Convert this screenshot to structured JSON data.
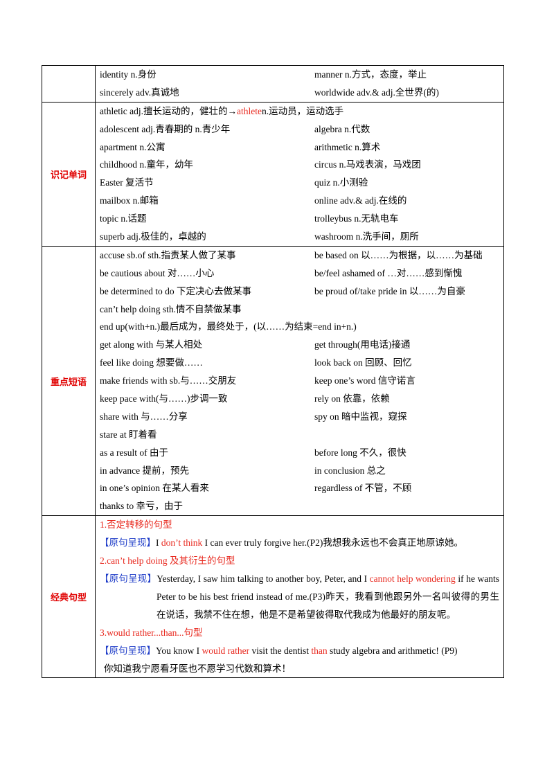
{
  "table": {
    "intro": [
      [
        "identity n.身份",
        "manner n.方式，态度，举止"
      ],
      [
        "sincerely adv.真诚地",
        "worldwide adv.& adj.全世界(的)"
      ]
    ],
    "words": {
      "label": "识记单词",
      "first": [
        "athletic adj.擅长运动的，健壮的→",
        "athlete",
        " n.运动员，运动选手"
      ],
      "pairs": [
        [
          "adolescent adj.青春期的  n.青少年",
          "algebra n.代数"
        ],
        [
          "apartment n.公寓",
          "arithmetic  n.算术"
        ],
        [
          "childhood n.童年，幼年",
          "circus n.马戏表演，马戏团"
        ],
        [
          "Easter  复活节",
          "quiz n.小测验"
        ],
        [
          "mailbox n.邮箱",
          "online adv.& adj.在线的"
        ],
        [
          "topic n.话题",
          "trolleybus n.无轨电车"
        ],
        [
          "superb adj.极佳的，卓越的",
          "washroom n.洗手间，厕所"
        ]
      ]
    },
    "phrases": {
      "label": "重点短语",
      "lines": [
        [
          "accuse sb.of sth.指责某人做了某事",
          "be based on 以……为根据，以……为基础"
        ],
        [
          "be cautious about 对……小心",
          "be/feel ashamed of …对……感到惭愧"
        ],
        [
          "be determined to do 下定决心去做某事",
          "be proud of/take pride in 以……为自豪"
        ],
        [
          "can’t help doing sth.情不自禁做某事"
        ],
        [
          "end up(with+n.)最后成为，最终处于，(以……为结束=end  in+n.)"
        ],
        [
          "get along with 与某人相处",
          "get through(用电话)接通"
        ],
        [
          "feel like doing 想要做……",
          "look back on 回顾、回忆"
        ],
        [
          "make friends with sb.与……交朋友",
          "keep one’s word 信守诺言"
        ],
        [
          "keep pace with(与……)步调一致",
          "rely on 依靠，依赖"
        ],
        [
          "share with 与……分享",
          "spy on 暗中监视，窥探"
        ],
        [
          "stare at 盯着看"
        ],
        [
          "as a result of 由于",
          "before long 不久，很快"
        ],
        [
          "in advance 提前，预先",
          "in conclusion 总之"
        ],
        [
          "in one’s opinion 在某人看来",
          " regardless of 不管，不顾"
        ],
        [
          "thanks to 幸亏，由于"
        ]
      ]
    },
    "sentences": {
      "label": "经典句型",
      "items": [
        {
          "heading": "1.否定转移的句型",
          "tag": "【原句呈现】",
          "text": [
            "I ",
            "don’t think",
            " I can ever truly forgive her.(P2)我想我永远也不会真正地原谅她。"
          ]
        },
        {
          "heading": "2.can’t help doing 及其衍生的句型",
          "tag": "【原句呈现】",
          "text": [
            "Yesterday, I saw him talking to another boy, Peter, and I ",
            "cannot help wondering",
            " if he wants Peter to be his best friend instead of me.(P3)昨天，我看到他跟另外一名叫彼得的男生在说话，我禁不住在想，他是不是希望彼得取代我成为他最好的朋友呢。"
          ]
        },
        {
          "heading": "3.would rather...than...句型",
          "tag": "【原句呈现】",
          "text": [
            "You know I ",
            "would rather",
            " visit the dentist ",
            "than",
            " study algebra and arithmetic! (P9)"
          ],
          "translation": "你知道我宁愿看牙医也不愿学习代数和算术！"
        }
      ]
    }
  }
}
